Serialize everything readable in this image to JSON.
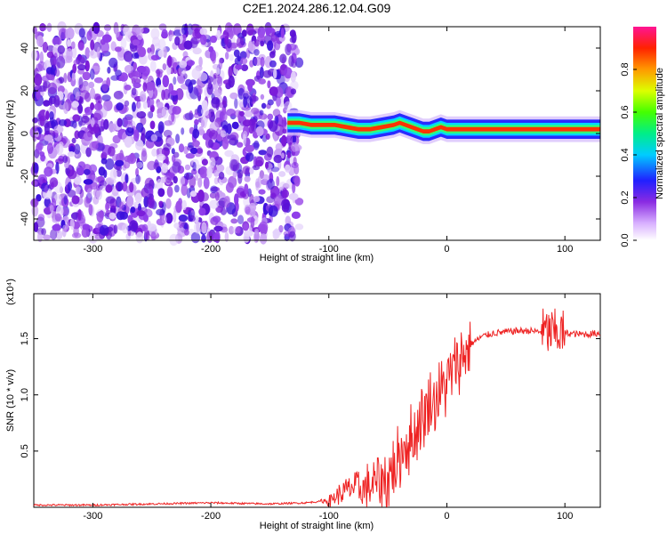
{
  "title": "C2E1.2024.286.12.04.G09",
  "chart_data": [
    {
      "type": "heatmap",
      "xlabel": "Height of straight line (km)",
      "ylabel": "Frequency (Hz)",
      "xlim": [
        -350,
        130
      ],
      "ylim": [
        -50,
        50
      ],
      "x_ticks": [
        -300,
        -200,
        -100,
        0,
        100
      ],
      "x_tick_labels": [
        "-300",
        "-200",
        "-100",
        "0",
        "100"
      ],
      "y_ticks": [
        -40,
        -20,
        0,
        20,
        40
      ],
      "y_tick_labels": [
        "-40",
        "-20",
        "0",
        "20",
        "40"
      ],
      "colorbar": {
        "label": "Normalized spectral amplitude",
        "range": [
          0,
          1
        ],
        "ticks": [
          0.0,
          0.2,
          0.4,
          0.6,
          0.8
        ],
        "tick_labels": [
          "0.0",
          "0.2",
          "0.4",
          "0.6",
          "0.8"
        ]
      },
      "noise_region_x": [
        -350,
        -125
      ],
      "signal_track": {
        "x": [
          -135,
          -125,
          -115,
          -105,
          -95,
          -85,
          -75,
          -65,
          -55,
          -45,
          -40,
          -35,
          -30,
          -25,
          -20,
          -15,
          -10,
          -5,
          0,
          10,
          20,
          30,
          50,
          70,
          90,
          110,
          130
        ],
        "frequency": [
          5,
          5,
          4,
          4,
          4,
          3,
          2,
          2,
          3,
          4,
          5,
          4,
          3,
          2,
          1,
          1,
          2,
          3,
          2,
          2,
          2,
          2,
          2,
          2,
          2,
          2,
          2
        ]
      }
    },
    {
      "type": "line",
      "xlabel": "Height of straight line (km)",
      "ylabel": "SNR (10 * v/v)",
      "y_multiplier": "(x10⁴)",
      "xlim": [
        -350,
        130
      ],
      "ylim": [
        0,
        1.9
      ],
      "x_ticks": [
        -300,
        -200,
        -100,
        0,
        100
      ],
      "x_tick_labels": [
        "-300",
        "-200",
        "-100",
        "0",
        "100"
      ],
      "y_ticks": [
        0.5,
        1.0,
        1.5
      ],
      "y_tick_labels": [
        "0.5",
        "1.0",
        "1.5"
      ],
      "color": "#ee2222",
      "series": [
        {
          "x": [
            -350,
            -300,
            -250,
            -200,
            -150,
            -120,
            -100,
            -90,
            -80,
            -70,
            -60,
            -50,
            -45,
            -40,
            -35,
            -30,
            -25,
            -20,
            -15,
            -10,
            -5,
            0,
            10,
            20,
            30,
            40,
            50,
            60,
            70,
            80,
            90,
            100,
            110,
            120,
            130
          ],
          "values": [
            0.02,
            0.02,
            0.03,
            0.04,
            0.03,
            0.04,
            0.06,
            0.12,
            0.18,
            0.15,
            0.22,
            0.25,
            0.35,
            0.45,
            0.55,
            0.6,
            0.7,
            0.8,
            0.9,
            0.95,
            1.0,
            1.1,
            1.3,
            1.45,
            1.52,
            1.55,
            1.56,
            1.57,
            1.57,
            1.56,
            1.55,
            1.55,
            1.54,
            1.54,
            1.55
          ]
        }
      ]
    }
  ]
}
